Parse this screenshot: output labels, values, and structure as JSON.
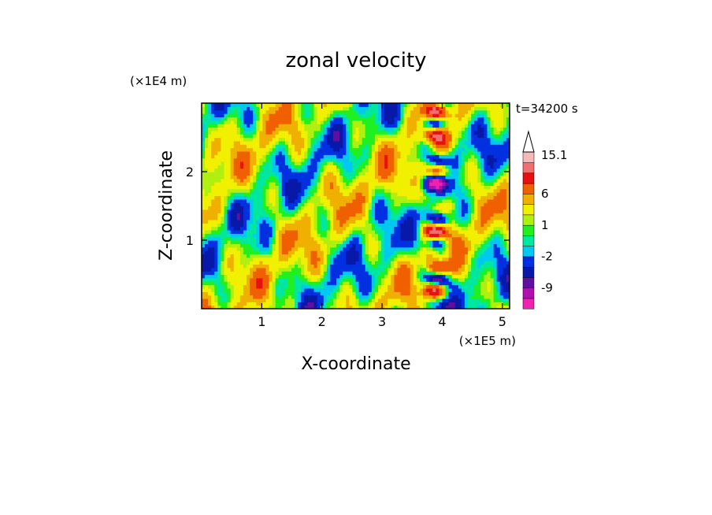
{
  "chart_data": {
    "type": "heatmap",
    "title": "zonal velocity",
    "xlabel": "X-coordinate",
    "ylabel": "Z-coordinate",
    "x_unit": "(×1E5 m)",
    "y_unit": "(×1E4 m)",
    "time_label": "t=34200 s",
    "xlim": [
      0,
      5.12
    ],
    "ylim": [
      0,
      3.0
    ],
    "x_ticks": [
      1,
      2,
      3,
      4,
      5
    ],
    "y_ticks": [
      1,
      2
    ],
    "colorbar": {
      "levels": [
        -15,
        -12,
        -9,
        -6,
        -4,
        -2,
        -1,
        0,
        1,
        2,
        4,
        6,
        9,
        12,
        15.1
      ],
      "colors": [
        "#f020b0",
        "#b010b0",
        "#6010a0",
        "#0818a8",
        "#0030e0",
        "#00c8f0",
        "#00e8a0",
        "#20f020",
        "#b0f010",
        "#f0f000",
        "#f0b000",
        "#f06000",
        "#e81010",
        "#f07070",
        "#f8b8b8"
      ],
      "tick_labels": [
        "15.1",
        "6",
        "1",
        "-2",
        "-9"
      ],
      "tick_values": [
        15.1,
        6,
        1,
        -2,
        -9
      ],
      "extend": "max"
    }
  }
}
